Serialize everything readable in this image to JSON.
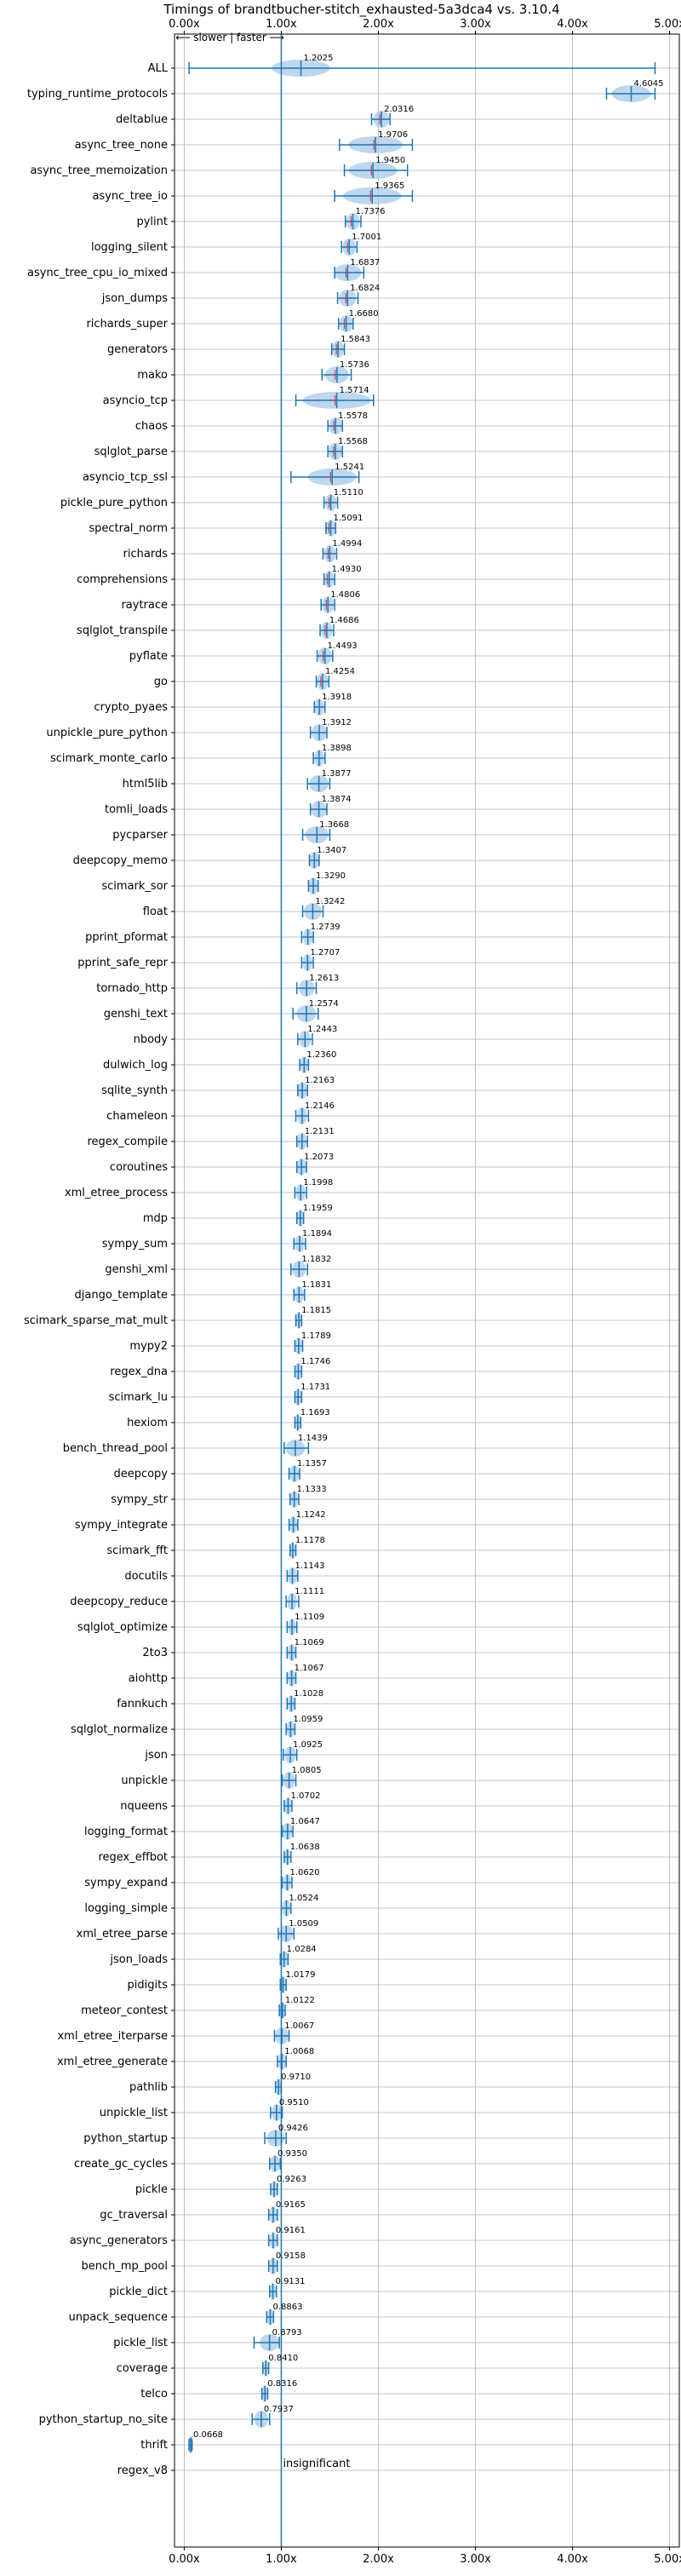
{
  "chart_data": {
    "type": "violin",
    "title": "Timings of brandtbucher-stitch_exhausted-5a3dca4 vs. 3.10.4",
    "direction_note": "⟵ slower | faster ⟶",
    "xlim": [
      -0.1,
      5.1
    ],
    "xticks": [
      0,
      1,
      2,
      3,
      4,
      5
    ],
    "xtick_labels": [
      "0.00x",
      "1.00x",
      "2.00x",
      "3.00x",
      "4.00x",
      "5.00x"
    ],
    "grid": true,
    "reference_line_x": 1.0,
    "insignificant_label": "insignificant",
    "colors": {
      "body": "#a8c8e8",
      "line": "#1f77b4",
      "mean": "#d62728"
    },
    "rows": [
      {
        "name": "ALL",
        "label": "1.2025",
        "value": 1.2025,
        "lo": 0.05,
        "hi": 4.85,
        "spread": 0.3
      },
      {
        "name": "typing_runtime_protocols",
        "label": "4.6045",
        "value": 4.6045,
        "lo": 4.35,
        "hi": 4.85,
        "spread": 0.2
      },
      {
        "name": "deltablue",
        "label": "2.0316",
        "value": 2.0316,
        "lo": 1.93,
        "hi": 2.12,
        "spread": 0.08
      },
      {
        "name": "async_tree_none",
        "label": "1.9706",
        "value": 1.9706,
        "lo": 1.6,
        "hi": 2.35,
        "spread": 0.28
      },
      {
        "name": "async_tree_memoization",
        "label": "1.9450",
        "value": 1.945,
        "lo": 1.65,
        "hi": 2.3,
        "spread": 0.25
      },
      {
        "name": "async_tree_io",
        "label": "1.9365",
        "value": 1.9365,
        "lo": 1.55,
        "hi": 2.35,
        "spread": 0.3
      },
      {
        "name": "pylint",
        "label": "1.7376",
        "value": 1.7376,
        "lo": 1.66,
        "hi": 1.82,
        "spread": 0.07
      },
      {
        "name": "logging_silent",
        "label": "1.7001",
        "value": 1.7001,
        "lo": 1.62,
        "hi": 1.78,
        "spread": 0.07
      },
      {
        "name": "async_tree_cpu_io_mixed",
        "label": "1.6837",
        "value": 1.6837,
        "lo": 1.55,
        "hi": 1.85,
        "spread": 0.14
      },
      {
        "name": "json_dumps",
        "label": "1.6824",
        "value": 1.6824,
        "lo": 1.58,
        "hi": 1.79,
        "spread": 0.09
      },
      {
        "name": "richards_super",
        "label": "1.6680",
        "value": 1.668,
        "lo": 1.59,
        "hi": 1.74,
        "spread": 0.07
      },
      {
        "name": "generators",
        "label": "1.5843",
        "value": 1.5843,
        "lo": 1.52,
        "hi": 1.65,
        "spread": 0.06
      },
      {
        "name": "mako",
        "label": "1.5736",
        "value": 1.5736,
        "lo": 1.42,
        "hi": 1.72,
        "spread": 0.12
      },
      {
        "name": "asyncio_tcp",
        "label": "1.5714",
        "value": 1.5714,
        "lo": 1.15,
        "hi": 1.95,
        "spread": 0.35
      },
      {
        "name": "chaos",
        "label": "1.5578",
        "value": 1.5578,
        "lo": 1.48,
        "hi": 1.63,
        "spread": 0.07
      },
      {
        "name": "sqlglot_parse",
        "label": "1.5568",
        "value": 1.5568,
        "lo": 1.48,
        "hi": 1.63,
        "spread": 0.07
      },
      {
        "name": "asyncio_tcp_ssl",
        "label": "1.5241",
        "value": 1.5241,
        "lo": 1.1,
        "hi": 1.8,
        "spread": 0.25
      },
      {
        "name": "pickle_pure_python",
        "label": "1.5110",
        "value": 1.511,
        "lo": 1.44,
        "hi": 1.58,
        "spread": 0.06
      },
      {
        "name": "spectral_norm",
        "label": "1.5091",
        "value": 1.5091,
        "lo": 1.46,
        "hi": 1.56,
        "spread": 0.05
      },
      {
        "name": "richards",
        "label": "1.4994",
        "value": 1.4994,
        "lo": 1.43,
        "hi": 1.57,
        "spread": 0.06
      },
      {
        "name": "comprehensions",
        "label": "1.4930",
        "value": 1.493,
        "lo": 1.44,
        "hi": 1.55,
        "spread": 0.05
      },
      {
        "name": "raytrace",
        "label": "1.4806",
        "value": 1.4806,
        "lo": 1.41,
        "hi": 1.55,
        "spread": 0.06
      },
      {
        "name": "sqlglot_transpile",
        "label": "1.4686",
        "value": 1.4686,
        "lo": 1.4,
        "hi": 1.54,
        "spread": 0.06
      },
      {
        "name": "pyflate",
        "label": "1.4493",
        "value": 1.4493,
        "lo": 1.37,
        "hi": 1.53,
        "spread": 0.07
      },
      {
        "name": "go",
        "label": "1.4254",
        "value": 1.4254,
        "lo": 1.36,
        "hi": 1.49,
        "spread": 0.06
      },
      {
        "name": "crypto_pyaes",
        "label": "1.3918",
        "value": 1.3918,
        "lo": 1.34,
        "hi": 1.45,
        "spread": 0.05
      },
      {
        "name": "unpickle_pure_python",
        "label": "1.3912",
        "value": 1.3912,
        "lo": 1.3,
        "hi": 1.47,
        "spread": 0.08
      },
      {
        "name": "scimark_monte_carlo",
        "label": "1.3898",
        "value": 1.3898,
        "lo": 1.33,
        "hi": 1.45,
        "spread": 0.05
      },
      {
        "name": "html5lib",
        "label": "1.3877",
        "value": 1.3877,
        "lo": 1.27,
        "hi": 1.5,
        "spread": 0.1
      },
      {
        "name": "tomli_loads",
        "label": "1.3874",
        "value": 1.3874,
        "lo": 1.3,
        "hi": 1.47,
        "spread": 0.08
      },
      {
        "name": "pycparser",
        "label": "1.3668",
        "value": 1.3668,
        "lo": 1.22,
        "hi": 1.5,
        "spread": 0.12
      },
      {
        "name": "deepcopy_memo",
        "label": "1.3407",
        "value": 1.3407,
        "lo": 1.29,
        "hi": 1.39,
        "spread": 0.05
      },
      {
        "name": "scimark_sor",
        "label": "1.3290",
        "value": 1.329,
        "lo": 1.28,
        "hi": 1.38,
        "spread": 0.05
      },
      {
        "name": "float",
        "label": "1.3242",
        "value": 1.3242,
        "lo": 1.22,
        "hi": 1.43,
        "spread": 0.09
      },
      {
        "name": "pprint_pformat",
        "label": "1.2739",
        "value": 1.2739,
        "lo": 1.21,
        "hi": 1.33,
        "spread": 0.05
      },
      {
        "name": "pprint_safe_repr",
        "label": "1.2707",
        "value": 1.2707,
        "lo": 1.21,
        "hi": 1.33,
        "spread": 0.05
      },
      {
        "name": "tornado_http",
        "label": "1.2613",
        "value": 1.2613,
        "lo": 1.16,
        "hi": 1.36,
        "spread": 0.08
      },
      {
        "name": "genshi_text",
        "label": "1.2574",
        "value": 1.2574,
        "lo": 1.12,
        "hi": 1.38,
        "spread": 0.1
      },
      {
        "name": "nbody",
        "label": "1.2443",
        "value": 1.2443,
        "lo": 1.17,
        "hi": 1.32,
        "spread": 0.06
      },
      {
        "name": "dulwich_log",
        "label": "1.2360",
        "value": 1.236,
        "lo": 1.19,
        "hi": 1.28,
        "spread": 0.04
      },
      {
        "name": "sqlite_synth",
        "label": "1.2163",
        "value": 1.2163,
        "lo": 1.17,
        "hi": 1.27,
        "spread": 0.05
      },
      {
        "name": "chameleon",
        "label": "1.2146",
        "value": 1.2146,
        "lo": 1.15,
        "hi": 1.28,
        "spread": 0.05
      },
      {
        "name": "regex_compile",
        "label": "1.2131",
        "value": 1.2131,
        "lo": 1.16,
        "hi": 1.27,
        "spread": 0.05
      },
      {
        "name": "coroutines",
        "label": "1.2073",
        "value": 1.2073,
        "lo": 1.16,
        "hi": 1.26,
        "spread": 0.05
      },
      {
        "name": "xml_etree_process",
        "label": "1.1998",
        "value": 1.1998,
        "lo": 1.14,
        "hi": 1.26,
        "spread": 0.05
      },
      {
        "name": "mdp",
        "label": "1.1959",
        "value": 1.1959,
        "lo": 1.16,
        "hi": 1.23,
        "spread": 0.04
      },
      {
        "name": "sympy_sum",
        "label": "1.1894",
        "value": 1.1894,
        "lo": 1.13,
        "hi": 1.25,
        "spread": 0.05
      },
      {
        "name": "genshi_xml",
        "label": "1.1832",
        "value": 1.1832,
        "lo": 1.1,
        "hi": 1.27,
        "spread": 0.07
      },
      {
        "name": "django_template",
        "label": "1.1831",
        "value": 1.1831,
        "lo": 1.13,
        "hi": 1.24,
        "spread": 0.05
      },
      {
        "name": "scimark_sparse_mat_mult",
        "label": "1.1815",
        "value": 1.1815,
        "lo": 1.15,
        "hi": 1.21,
        "spread": 0.03
      },
      {
        "name": "mypy2",
        "label": "1.1789",
        "value": 1.1789,
        "lo": 1.14,
        "hi": 1.22,
        "spread": 0.04
      },
      {
        "name": "regex_dna",
        "label": "1.1746",
        "value": 1.1746,
        "lo": 1.14,
        "hi": 1.21,
        "spread": 0.04
      },
      {
        "name": "scimark_lu",
        "label": "1.1731",
        "value": 1.1731,
        "lo": 1.14,
        "hi": 1.21,
        "spread": 0.04
      },
      {
        "name": "hexiom",
        "label": "1.1693",
        "value": 1.1693,
        "lo": 1.14,
        "hi": 1.2,
        "spread": 0.03
      },
      {
        "name": "bench_thread_pool",
        "label": "1.1439",
        "value": 1.1439,
        "lo": 1.03,
        "hi": 1.28,
        "spread": 0.1
      },
      {
        "name": "deepcopy",
        "label": "1.1357",
        "value": 1.1357,
        "lo": 1.08,
        "hi": 1.19,
        "spread": 0.05
      },
      {
        "name": "sympy_str",
        "label": "1.1333",
        "value": 1.1333,
        "lo": 1.09,
        "hi": 1.18,
        "spread": 0.04
      },
      {
        "name": "sympy_integrate",
        "label": "1.1242",
        "value": 1.1242,
        "lo": 1.08,
        "hi": 1.17,
        "spread": 0.04
      },
      {
        "name": "scimark_fft",
        "label": "1.1178",
        "value": 1.1178,
        "lo": 1.09,
        "hi": 1.15,
        "spread": 0.03
      },
      {
        "name": "docutils",
        "label": "1.1143",
        "value": 1.1143,
        "lo": 1.06,
        "hi": 1.17,
        "spread": 0.05
      },
      {
        "name": "deepcopy_reduce",
        "label": "1.1111",
        "value": 1.1111,
        "lo": 1.05,
        "hi": 1.18,
        "spread": 0.05
      },
      {
        "name": "sqlglot_optimize",
        "label": "1.1109",
        "value": 1.1109,
        "lo": 1.06,
        "hi": 1.16,
        "spread": 0.04
      },
      {
        "name": "2to3",
        "label": "1.1069",
        "value": 1.1069,
        "lo": 1.06,
        "hi": 1.15,
        "spread": 0.04
      },
      {
        "name": "aiohttp",
        "label": "1.1067",
        "value": 1.1067,
        "lo": 1.06,
        "hi": 1.15,
        "spread": 0.04
      },
      {
        "name": "fannkuch",
        "label": "1.1028",
        "value": 1.1028,
        "lo": 1.06,
        "hi": 1.14,
        "spread": 0.04
      },
      {
        "name": "sqlglot_normalize",
        "label": "1.0959",
        "value": 1.0959,
        "lo": 1.05,
        "hi": 1.14,
        "spread": 0.04
      },
      {
        "name": "json",
        "label": "1.0925",
        "value": 1.0925,
        "lo": 1.02,
        "hi": 1.16,
        "spread": 0.06
      },
      {
        "name": "unpickle",
        "label": "1.0805",
        "value": 1.0805,
        "lo": 1.01,
        "hi": 1.15,
        "spread": 0.06
      },
      {
        "name": "nqueens",
        "label": "1.0702",
        "value": 1.0702,
        "lo": 1.03,
        "hi": 1.11,
        "spread": 0.04
      },
      {
        "name": "logging_format",
        "label": "1.0647",
        "value": 1.0647,
        "lo": 1.01,
        "hi": 1.12,
        "spread": 0.05
      },
      {
        "name": "regex_effbot",
        "label": "1.0638",
        "value": 1.0638,
        "lo": 1.03,
        "hi": 1.1,
        "spread": 0.03
      },
      {
        "name": "sympy_expand",
        "label": "1.0620",
        "value": 1.062,
        "lo": 1.01,
        "hi": 1.11,
        "spread": 0.04
      },
      {
        "name": "logging_simple",
        "label": "1.0524",
        "value": 1.0524,
        "lo": 1.0,
        "hi": 1.1,
        "spread": 0.04
      },
      {
        "name": "xml_etree_parse",
        "label": "1.0509",
        "value": 1.0509,
        "lo": 0.97,
        "hi": 1.13,
        "spread": 0.07
      },
      {
        "name": "json_loads",
        "label": "1.0284",
        "value": 1.0284,
        "lo": 0.99,
        "hi": 1.07,
        "spread": 0.04
      },
      {
        "name": "pidigits",
        "label": "1.0179",
        "value": 1.0179,
        "lo": 0.99,
        "hi": 1.05,
        "spread": 0.03
      },
      {
        "name": "meteor_contest",
        "label": "1.0122",
        "value": 1.0122,
        "lo": 0.98,
        "hi": 1.04,
        "spread": 0.03
      },
      {
        "name": "xml_etree_iterparse",
        "label": "1.0067",
        "value": 1.0067,
        "lo": 0.93,
        "hi": 1.08,
        "spread": 0.07
      },
      {
        "name": "xml_etree_generate",
        "label": "1.0068",
        "value": 1.0068,
        "lo": 0.96,
        "hi": 1.05,
        "spread": 0.04
      },
      {
        "name": "pathlib",
        "label": "0.9710",
        "value": 0.971,
        "lo": 0.94,
        "hi": 1.0,
        "spread": 0.03
      },
      {
        "name": "unpickle_list",
        "label": "0.9510",
        "value": 0.951,
        "lo": 0.89,
        "hi": 1.01,
        "spread": 0.05
      },
      {
        "name": "python_startup",
        "label": "0.9426",
        "value": 0.9426,
        "lo": 0.83,
        "hi": 1.05,
        "spread": 0.09
      },
      {
        "name": "create_gc_cycles",
        "label": "0.9350",
        "value": 0.935,
        "lo": 0.88,
        "hi": 0.99,
        "spread": 0.05
      },
      {
        "name": "pickle",
        "label": "0.9263",
        "value": 0.9263,
        "lo": 0.89,
        "hi": 0.96,
        "spread": 0.03
      },
      {
        "name": "gc_traversal",
        "label": "0.9165",
        "value": 0.9165,
        "lo": 0.87,
        "hi": 0.96,
        "spread": 0.04
      },
      {
        "name": "async_generators",
        "label": "0.9161",
        "value": 0.9161,
        "lo": 0.87,
        "hi": 0.96,
        "spread": 0.04
      },
      {
        "name": "bench_mp_pool",
        "label": "0.9158",
        "value": 0.9158,
        "lo": 0.87,
        "hi": 0.96,
        "spread": 0.04
      },
      {
        "name": "pickle_dict",
        "label": "0.9131",
        "value": 0.9131,
        "lo": 0.88,
        "hi": 0.95,
        "spread": 0.03
      },
      {
        "name": "unpack_sequence",
        "label": "0.8863",
        "value": 0.8863,
        "lo": 0.85,
        "hi": 0.92,
        "spread": 0.03
      },
      {
        "name": "pickle_list",
        "label": "0.8793",
        "value": 0.8793,
        "lo": 0.72,
        "hi": 0.98,
        "spread": 0.1
      },
      {
        "name": "coverage",
        "label": "0.8410",
        "value": 0.841,
        "lo": 0.81,
        "hi": 0.87,
        "spread": 0.03
      },
      {
        "name": "telco",
        "label": "0.8316",
        "value": 0.8316,
        "lo": 0.8,
        "hi": 0.86,
        "spread": 0.03
      },
      {
        "name": "python_startup_no_site",
        "label": "0.7937",
        "value": 0.7937,
        "lo": 0.7,
        "hi": 0.88,
        "spread": 0.07
      },
      {
        "name": "thrift",
        "label": "0.0668",
        "value": 0.0668,
        "lo": 0.05,
        "hi": 0.08,
        "spread": 0.02
      },
      {
        "name": "regex_v8",
        "label": "",
        "value": null,
        "lo": null,
        "hi": null,
        "spread": 0
      }
    ]
  }
}
